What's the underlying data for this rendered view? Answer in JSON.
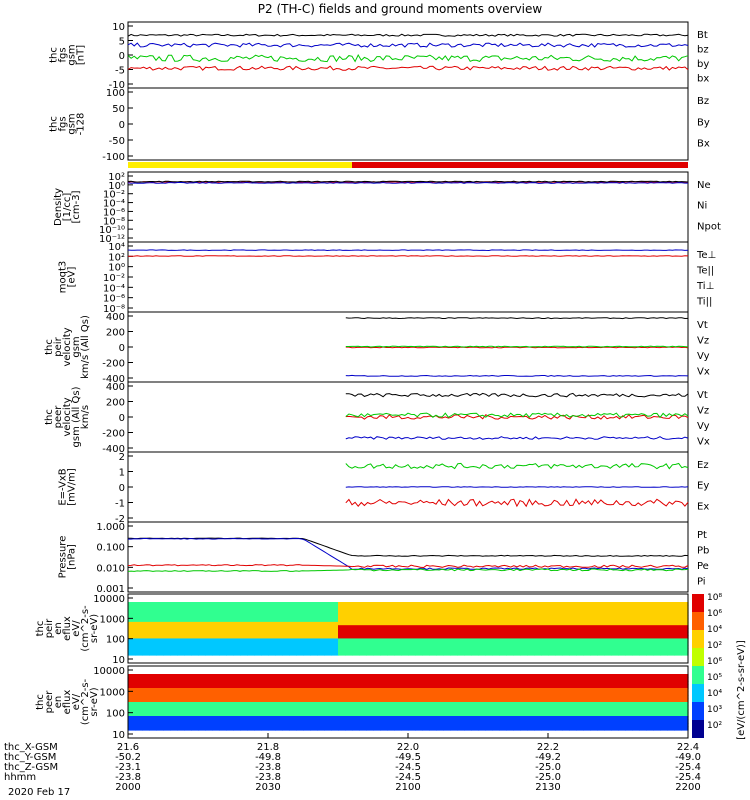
{
  "title": "P2 (TH-C) fields and ground moments overview",
  "x_axis": {
    "ticks": [
      {
        "t": 21.6,
        "x_gsm": "-50.2",
        "y_gsm": "-23.1",
        "z_gsm": "-23.8",
        "hhmm": "2000"
      },
      {
        "t": 21.8,
        "x_gsm": "-49.8",
        "y_gsm": "-23.8",
        "z_gsm": "-23.8",
        "hhmm": "2030"
      },
      {
        "t": 22.0,
        "x_gsm": "-49.5",
        "y_gsm": "-24.5",
        "z_gsm": "-24.5",
        "hhmm": "2100"
      },
      {
        "t": 22.2,
        "x_gsm": "-49.2",
        "y_gsm": "-25.0",
        "z_gsm": "-25.0",
        "hhmm": "2130"
      },
      {
        "t": 22.4,
        "x_gsm": "-49.0",
        "y_gsm": "-25.4",
        "z_gsm": "-25.4",
        "hhmm": "2200"
      }
    ],
    "ephem_labels": [
      "thc_X-GSM",
      "thc_Y-GSM",
      "thc_Z-GSM",
      "hhmm"
    ],
    "date": "2020 Feb 17"
  },
  "chart_data": [
    {
      "type": "line",
      "id": "fgs",
      "ylabel": [
        "thc",
        "fgs",
        "gsm",
        "[nT]"
      ],
      "ylim": [
        -10,
        10
      ],
      "ticks": [
        "10",
        "5",
        "0",
        "-5",
        "-10"
      ],
      "legend": [
        {
          "name": "Bt",
          "color": "#000000"
        },
        {
          "name": "bz",
          "color": "#e00000"
        },
        {
          "name": "by",
          "color": "#00c800"
        },
        {
          "name": "bx",
          "color": "#0000c8"
        }
      ],
      "series": [
        {
          "name": "Bt",
          "base": 6,
          "noise": 0.3
        },
        {
          "name": "bz",
          "base": -4,
          "noise": 0.6
        },
        {
          "name": "by",
          "base": -1,
          "noise": 1.0
        },
        {
          "name": "bx",
          "base": 3,
          "noise": 0.6
        }
      ]
    },
    {
      "type": "line",
      "id": "fgs_128",
      "ylabel": [
        "thc",
        "fgs",
        "gsm",
        "-128"
      ],
      "ylim": [
        -120,
        100
      ],
      "ticks": [
        "100",
        "50",
        "0",
        "-50",
        "-100"
      ],
      "legend": [
        {
          "name": "Bz",
          "color": "#e00000"
        },
        {
          "name": "By",
          "color": "#00c800"
        },
        {
          "name": "Bx",
          "color": "#0000c8"
        }
      ],
      "series": []
    },
    {
      "type": "line",
      "id": "density",
      "ylabel": [
        "Density",
        "[1/cc]",
        "[cm-3]"
      ],
      "ylim": [
        -14,
        2
      ],
      "ticks": [
        "10²",
        "10⁰",
        "10⁻²",
        "10⁻⁴",
        "10⁻⁶",
        "10⁻⁸",
        "10⁻¹⁰",
        "10⁻¹²"
      ],
      "legend": [
        {
          "name": "Ne",
          "color": "#e00000"
        },
        {
          "name": "Ni",
          "color": "#000000"
        },
        {
          "name": "Npot",
          "color": "#0000c8"
        }
      ],
      "series": [
        {
          "name": "Ne",
          "base": -0.3,
          "noise": 0.1
        },
        {
          "name": "Ni",
          "base": -0.2,
          "noise": 0.1
        },
        {
          "name": "Npot",
          "base": -0.5,
          "noise": 0.1
        }
      ]
    },
    {
      "type": "line",
      "id": "temp",
      "ylabel": [
        "moqt3",
        "[eV]"
      ],
      "ylim": [
        -8,
        4
      ],
      "ticks": [
        "10⁴",
        "10²",
        "10⁰",
        "10⁻²",
        "10⁻⁴",
        "10⁻⁶",
        "10⁻⁸"
      ],
      "legend": [
        {
          "name": "Te⊥",
          "color": "#e00000"
        },
        {
          "name": "Te||",
          "color": "#000000"
        },
        {
          "name": "Ti⊥",
          "color": "#a000a0"
        },
        {
          "name": "Ti||",
          "color": "#00c800"
        }
      ],
      "series": [
        {
          "name": "Ti⊥",
          "base": 2.6,
          "noise": 0.05
        },
        {
          "name": "Te⊥",
          "base": 1.6,
          "noise": 0.05
        }
      ]
    },
    {
      "type": "line",
      "id": "peir_v",
      "ylabel": [
        "thc",
        "peir",
        "velocity",
        "gsm",
        "km/s (All Qs)"
      ],
      "ylim": [
        -400,
        400
      ],
      "ticks": [
        "400",
        "200",
        "0",
        "-200",
        "-400"
      ],
      "legend": [
        {
          "name": "Vt",
          "color": "#000000"
        },
        {
          "name": "Vz",
          "color": "#e00000"
        },
        {
          "name": "Vy",
          "color": "#00c800"
        },
        {
          "name": "Vx",
          "color": "#0000c8"
        }
      ],
      "series": [
        {
          "name": "Vt",
          "base": 330,
          "noise": 5,
          "start": 21.91
        },
        {
          "name": "Vz",
          "base": -5,
          "noise": 5,
          "start": 21.91
        },
        {
          "name": "Vy",
          "base": 5,
          "noise": 5,
          "start": 21.91
        },
        {
          "name": "Vx",
          "base": -330,
          "noise": 5,
          "start": 21.91
        }
      ]
    },
    {
      "type": "line",
      "id": "peer_v",
      "ylabel": [
        "thc",
        "peer",
        "velocity",
        "gsm (All Qs)",
        "km/s"
      ],
      "ylim": [
        -400,
        400
      ],
      "ticks": [
        "400",
        "200",
        "0",
        "-200",
        "-400"
      ],
      "legend": [
        {
          "name": "Vt",
          "color": "#000000"
        },
        {
          "name": "Vz",
          "color": "#e00000"
        },
        {
          "name": "Vy",
          "color": "#00c800"
        },
        {
          "name": "Vx",
          "color": "#0000c8"
        }
      ],
      "series": [
        {
          "name": "Vt",
          "base": 250,
          "noise": 20,
          "start": 21.91
        },
        {
          "name": "Vz",
          "base": 0,
          "noise": 25,
          "start": 21.91
        },
        {
          "name": "Vy",
          "base": 20,
          "noise": 25,
          "start": 21.91
        },
        {
          "name": "Vx",
          "base": -240,
          "noise": 15,
          "start": 21.91
        }
      ]
    },
    {
      "type": "line",
      "id": "efield",
      "ylabel": [
        "E=-VxB",
        "[mV/m]"
      ],
      "ylim": [
        -2,
        2
      ],
      "ticks": [
        "2",
        "1",
        "0",
        "-1",
        "-2"
      ],
      "legend": [
        {
          "name": "Ez",
          "color": "#e00000"
        },
        {
          "name": "Ey",
          "color": "#00c800"
        },
        {
          "name": "Ex",
          "color": "#0000c8"
        }
      ],
      "series": [
        {
          "name": "Ey",
          "base": 1.2,
          "noise": 0.15,
          "start": 21.91
        },
        {
          "name": "Ex",
          "base": 0.0,
          "noise": 0.02,
          "start": 21.91
        },
        {
          "name": "Ez",
          "base": -0.9,
          "noise": 0.2,
          "start": 21.91
        }
      ]
    },
    {
      "type": "line",
      "id": "pressure",
      "ylabel": [
        "Pressure",
        "[nPa]"
      ],
      "ylim": [
        -3,
        0
      ],
      "ticks": [
        "1.000",
        "0.100",
        "0.010",
        "0.001"
      ],
      "legend": [
        {
          "name": "Pt",
          "color": "#000000"
        },
        {
          "name": "Pb",
          "color": "#e00000"
        },
        {
          "name": "Pe",
          "color": "#00c800"
        },
        {
          "name": "Pi",
          "color": "#0000c8"
        }
      ],
      "series": [
        {
          "name": "Pt",
          "base": -1.45,
          "noise": 0.02,
          "before": -0.7
        },
        {
          "name": "Pi",
          "base": -2.0,
          "noise": 0.03,
          "before": -0.72
        },
        {
          "name": "Pb",
          "base": -1.9,
          "noise": 0.05,
          "before": -1.85
        },
        {
          "name": "Pe",
          "base": -2.05,
          "noise": 0.04,
          "before": -2.1
        }
      ]
    },
    {
      "type": "heatmap",
      "id": "peir_en",
      "ylabel": [
        "thc",
        "peir",
        "en",
        "eflux",
        "eV/",
        "(cm^2-s-",
        "sr-eV)"
      ],
      "ylim": [
        10,
        10000
      ],
      "ticks": [
        "10000",
        "1000",
        "100",
        "10"
      ]
    },
    {
      "type": "heatmap",
      "id": "peer_en",
      "ylabel": [
        "thc",
        "peer",
        "en",
        "eflux",
        "eV/",
        "(cm^2-s-",
        "sr-eV)"
      ],
      "ylim": [
        10,
        10000
      ],
      "ticks": [
        "10000",
        "1000",
        "100",
        "10"
      ]
    }
  ],
  "colorbar": {
    "label": "[eV/(cm^2-s-sr-eV)]",
    "ticks": [
      "10⁸",
      "10⁶",
      "10⁴",
      "10²",
      "10⁶",
      "10⁵",
      "10⁴",
      "10³",
      "10²"
    ]
  }
}
